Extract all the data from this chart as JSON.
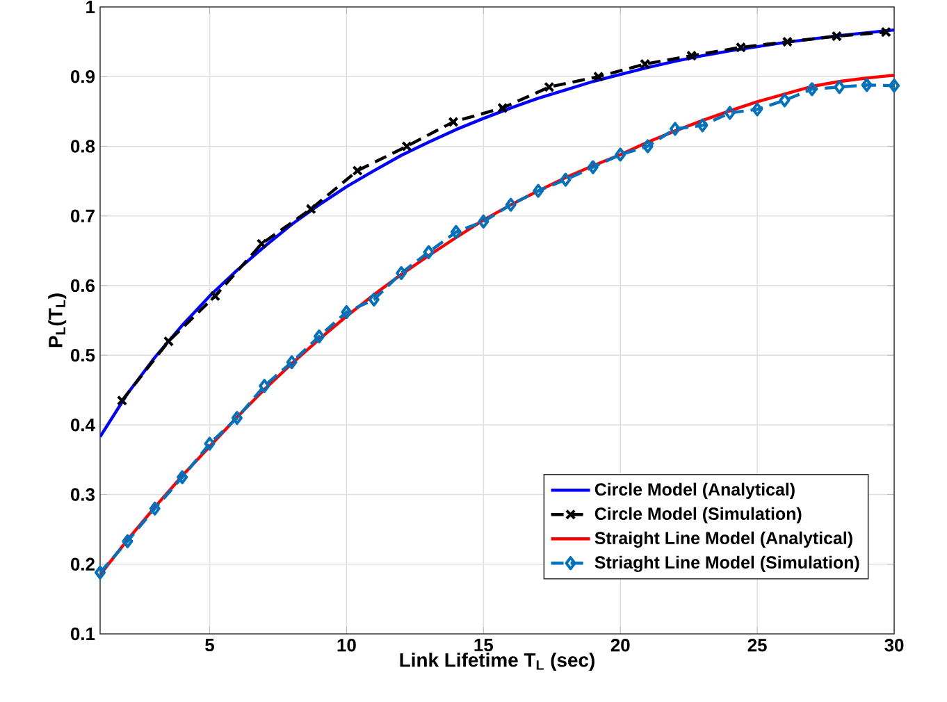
{
  "chart_data": {
    "type": "line",
    "xlabel": "Link Lifetime T$_{L}$ (sec)",
    "ylabel": "P$_{L}$(T$_{L}$)",
    "xlim": [
      1,
      30
    ],
    "ylim": [
      0.1,
      1
    ],
    "xticks": [
      5,
      10,
      15,
      20,
      25,
      30
    ],
    "yticks": [
      0.1,
      0.2,
      0.3,
      0.4,
      0.5,
      0.6,
      0.7,
      0.8,
      0.9,
      1
    ],
    "grid": true,
    "legend": "bottom right",
    "series": [
      {
        "name": "Circle Model (Analytical)",
        "color": "#0000ff",
        "marker": "none",
        "line_style": "solid",
        "x": [
          1,
          2,
          3,
          4,
          5,
          6,
          7,
          8,
          9,
          10,
          11,
          12,
          13,
          14,
          15,
          16,
          17,
          18,
          19,
          20,
          21,
          22,
          23,
          24,
          25,
          26,
          27,
          28,
          29,
          30
        ],
        "values": [
          0.383,
          0.445,
          0.497,
          0.543,
          0.585,
          0.622,
          0.656,
          0.688,
          0.716,
          0.742,
          0.765,
          0.787,
          0.806,
          0.824,
          0.84,
          0.855,
          0.869,
          0.881,
          0.893,
          0.903,
          0.913,
          0.922,
          0.93,
          0.937,
          0.943,
          0.949,
          0.954,
          0.959,
          0.963,
          0.967
        ]
      },
      {
        "name": "Circle Model (Simulation)",
        "color": "#000000",
        "marker": "cross",
        "line_style": "dashed",
        "x": [
          1.8,
          3.5,
          5.2,
          6.9,
          8.7,
          10.4,
          12.2,
          13.9,
          15.7,
          17.4,
          19.2,
          20.9,
          22.6,
          24.4,
          26.1,
          27.9,
          29.7
        ],
        "values": [
          0.435,
          0.52,
          0.585,
          0.66,
          0.71,
          0.765,
          0.8,
          0.835,
          0.855,
          0.885,
          0.9,
          0.918,
          0.93,
          0.942,
          0.95,
          0.958,
          0.964
        ]
      },
      {
        "name": "Straight Line Model (Analytical)",
        "color": "#ff0000",
        "marker": "none",
        "line_style": "solid",
        "x": [
          1,
          2,
          3,
          4,
          5,
          6,
          7,
          8,
          9,
          10,
          11,
          12,
          13,
          14,
          15,
          16,
          17,
          18,
          19,
          20,
          21,
          22,
          23,
          24,
          25,
          26,
          27,
          28,
          29,
          30
        ],
        "values": [
          0.185,
          0.235,
          0.282,
          0.327,
          0.369,
          0.411,
          0.451,
          0.488,
          0.523,
          0.556,
          0.587,
          0.616,
          0.643,
          0.669,
          0.694,
          0.716,
          0.736,
          0.755,
          0.772,
          0.788,
          0.806,
          0.822,
          0.837,
          0.851,
          0.864,
          0.875,
          0.886,
          0.893,
          0.898,
          0.902
        ]
      },
      {
        "name": "Striaght Line Model (Simulation)",
        "color": "#0072bd",
        "marker": "diamond",
        "line_style": "dashed",
        "x": [
          1,
          2,
          3,
          4,
          5,
          6,
          7,
          8,
          9,
          10,
          11,
          12,
          13,
          14,
          15,
          16,
          17,
          18,
          19,
          20,
          21,
          22,
          23,
          24,
          25,
          26,
          27,
          28,
          29,
          30
        ],
        "values": [
          0.188,
          0.233,
          0.28,
          0.325,
          0.373,
          0.41,
          0.456,
          0.49,
          0.527,
          0.562,
          0.58,
          0.618,
          0.648,
          0.677,
          0.692,
          0.716,
          0.736,
          0.752,
          0.77,
          0.788,
          0.8,
          0.825,
          0.83,
          0.848,
          0.853,
          0.866,
          0.882,
          0.885,
          0.888,
          0.887
        ]
      }
    ]
  }
}
